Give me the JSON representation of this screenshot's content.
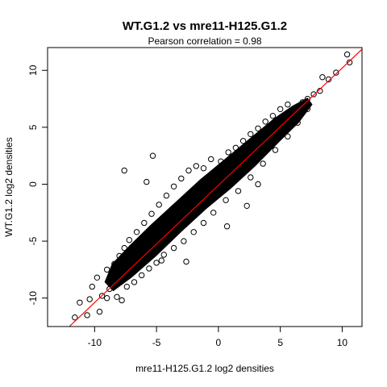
{
  "chart_data": {
    "type": "scatter",
    "title": "WT.G1.2 vs mre11-H125.G1.2",
    "subtitle": "Pearson correlation =  0.98",
    "xlabel": "mre11-H125.G1.2 log2 densities",
    "ylabel": "WT.G1.2 log2 densities",
    "xlim": [
      -13.8,
      11.6
    ],
    "ylim": [
      -12.5,
      12.0
    ],
    "x_ticks": [
      -10,
      -5,
      0,
      5,
      10
    ],
    "y_ticks": [
      -10,
      -5,
      0,
      5,
      10
    ],
    "x_tick_labels": [
      "-10",
      "-5",
      "0",
      "5",
      "10"
    ],
    "y_tick_labels": [
      "-10",
      "-5",
      "0",
      "5",
      "10"
    ],
    "grid": false,
    "marker": "open-circle",
    "reference_line": {
      "slope": 1.03,
      "intercept": -0.1,
      "color": "#ff0000"
    },
    "points": [
      {
        "x": 10.4,
        "y": 11.4
      },
      {
        "x": 10.6,
        "y": 10.7
      },
      {
        "x": 8.9,
        "y": 9.2
      },
      {
        "x": 9.5,
        "y": 9.8
      },
      {
        "x": 8.4,
        "y": 9.4
      },
      {
        "x": 8.2,
        "y": 8.2
      },
      {
        "x": 7.7,
        "y": 7.9
      },
      {
        "x": 7.2,
        "y": 7.5
      },
      {
        "x": 6.8,
        "y": 7.2
      },
      {
        "x": -5.3,
        "y": 2.5
      },
      {
        "x": -7.6,
        "y": 1.2
      },
      {
        "x": -5.8,
        "y": 0.2
      },
      {
        "x": 3.2,
        "y": 0.0
      },
      {
        "x": 2.3,
        "y": -1.9
      },
      {
        "x": 0.7,
        "y": -3.7
      },
      {
        "x": -4.6,
        "y": -6.7
      },
      {
        "x": -2.6,
        "y": -6.8
      },
      {
        "x": -10.4,
        "y": -10.1
      },
      {
        "x": -11.6,
        "y": -11.7
      },
      {
        "x": -11.2,
        "y": -10.4
      },
      {
        "x": -10.6,
        "y": -11.5
      },
      {
        "x": -9.6,
        "y": -11.2
      },
      {
        "x": -9.0,
        "y": -10.0
      },
      {
        "x": -8.8,
        "y": -9.2
      },
      {
        "x": -8.6,
        "y": -8.4
      },
      {
        "x": -9.0,
        "y": -7.5
      },
      {
        "x": -8.4,
        "y": -7.0
      },
      {
        "x": -8.0,
        "y": -6.3
      },
      {
        "x": -7.6,
        "y": -5.6
      },
      {
        "x": -7.2,
        "y": -4.9
      },
      {
        "x": -6.6,
        "y": -4.2
      },
      {
        "x": -6.0,
        "y": -3.4
      },
      {
        "x": -5.4,
        "y": -2.6
      },
      {
        "x": -4.8,
        "y": -1.8
      },
      {
        "x": -4.2,
        "y": -1.0
      },
      {
        "x": -3.6,
        "y": -0.2
      },
      {
        "x": -3.0,
        "y": 0.5
      },
      {
        "x": -2.4,
        "y": 1.2
      },
      {
        "x": -1.8,
        "y": 1.6
      },
      {
        "x": -1.2,
        "y": 1.4
      },
      {
        "x": -0.6,
        "y": 2.2
      },
      {
        "x": 0.2,
        "y": 2.0
      },
      {
        "x": 0.8,
        "y": 2.8
      },
      {
        "x": 1.4,
        "y": 3.2
      },
      {
        "x": 2.0,
        "y": 3.8
      },
      {
        "x": 2.6,
        "y": 4.4
      },
      {
        "x": 3.2,
        "y": 4.9
      },
      {
        "x": 3.8,
        "y": 5.5
      },
      {
        "x": 4.4,
        "y": 6.0
      },
      {
        "x": 5.0,
        "y": 6.6
      },
      {
        "x": 5.6,
        "y": 7.0
      },
      {
        "x": -7.4,
        "y": -9.0
      },
      {
        "x": -6.8,
        "y": -8.6
      },
      {
        "x": -6.2,
        "y": -8.0
      },
      {
        "x": -5.6,
        "y": -7.4
      },
      {
        "x": -5.0,
        "y": -6.9
      },
      {
        "x": -4.4,
        "y": -6.2
      },
      {
        "x": -3.6,
        "y": -5.6
      },
      {
        "x": -2.8,
        "y": -5.0
      },
      {
        "x": -2.0,
        "y": -4.2
      },
      {
        "x": -1.2,
        "y": -3.4
      },
      {
        "x": -0.4,
        "y": -2.5
      },
      {
        "x": 0.6,
        "y": -1.4
      },
      {
        "x": 1.6,
        "y": -0.6
      },
      {
        "x": 2.6,
        "y": 0.6
      },
      {
        "x": 3.6,
        "y": 1.8
      },
      {
        "x": 4.6,
        "y": 3.0
      },
      {
        "x": 5.6,
        "y": 4.2
      },
      {
        "x": 6.4,
        "y": 5.4
      },
      {
        "x": 7.2,
        "y": 6.6
      },
      {
        "x": -9.8,
        "y": -8.2
      },
      {
        "x": -10.2,
        "y": -9.0
      },
      {
        "x": -9.4,
        "y": -9.8
      },
      {
        "x": -8.2,
        "y": -9.9
      },
      {
        "x": -7.8,
        "y": -10.2
      },
      {
        "x": -6.4,
        "y": -6.0
      },
      {
        "x": -5.2,
        "y": -5.0
      },
      {
        "x": -4.0,
        "y": -3.8
      },
      {
        "x": -2.8,
        "y": -2.7
      },
      {
        "x": -1.6,
        "y": -1.6
      },
      {
        "x": -0.4,
        "y": -0.4
      },
      {
        "x": 0.8,
        "y": 0.8
      },
      {
        "x": 2.0,
        "y": 2.0
      },
      {
        "x": 3.0,
        "y": 3.2
      },
      {
        "x": 4.0,
        "y": 4.2
      },
      {
        "x": 5.0,
        "y": 5.2
      },
      {
        "x": 6.0,
        "y": 6.2
      }
    ]
  }
}
